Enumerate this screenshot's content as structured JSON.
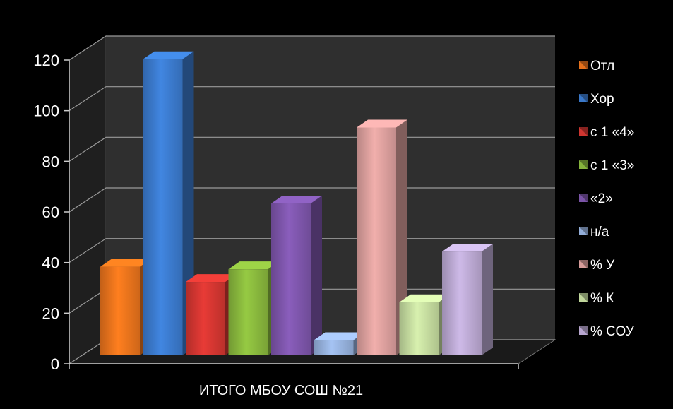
{
  "chart_data": {
    "type": "bar",
    "title": "",
    "xlabel": "",
    "ylabel": "",
    "categories": [
      "ИТОГО  МБОУ СОШ №21"
    ],
    "ylim": [
      0,
      120
    ],
    "yticks": [
      0,
      20,
      40,
      60,
      80,
      100,
      120
    ],
    "grid": true,
    "legend_position": "right",
    "three_d": true,
    "series": [
      {
        "name": "Отл",
        "values": [
          35
        ],
        "color": "#e5711c"
      },
      {
        "name": "Хор",
        "values": [
          117
        ],
        "color": "#3a78c9"
      },
      {
        "name": "с 1 «4»",
        "values": [
          29
        ],
        "color": "#cf3530"
      },
      {
        "name": "с 1 «3»",
        "values": [
          34
        ],
        "color": "#86b43c"
      },
      {
        "name": " «2»",
        "values": [
          60
        ],
        "color": "#7b54a8"
      },
      {
        "name": "н/а",
        "values": [
          6
        ],
        "color": "#93aed9"
      },
      {
        "name": "% У",
        "values": [
          90
        ],
        "color": "#d79c9a"
      },
      {
        "name": "% К",
        "values": [
          21
        ],
        "color": "#c1d79c"
      },
      {
        "name": "% СОУ",
        "values": [
          41
        ],
        "color": "#b8a6cf"
      }
    ]
  }
}
